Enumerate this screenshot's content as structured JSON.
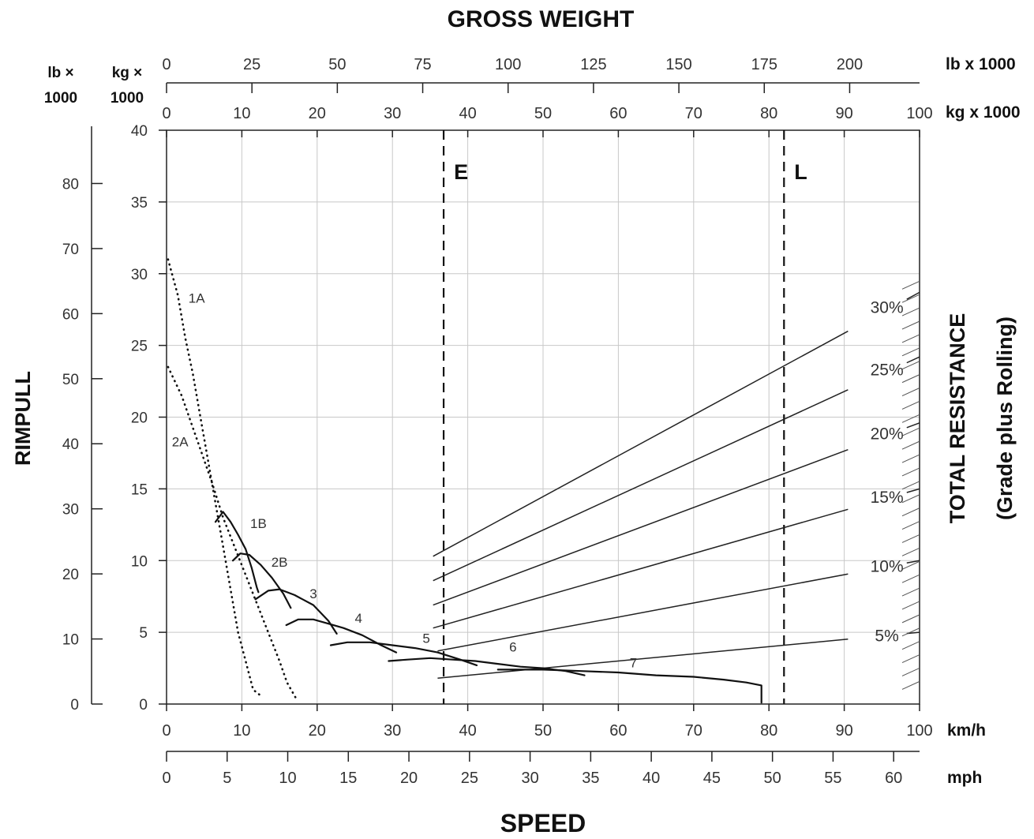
{
  "chart_data": {
    "type": "line",
    "title": "GROSS WEIGHT",
    "xlabel": "SPEED",
    "ylabel": "RIMPULL",
    "right_label_line1": "TOTAL RESISTANCE",
    "right_label_line2": "(Grade plus Rolling)",
    "x_axis_kmh": {
      "unit": "km/h",
      "range": [
        0,
        100
      ],
      "ticks": [
        0,
        10,
        20,
        30,
        40,
        50,
        60,
        70,
        80,
        90,
        100
      ]
    },
    "x_axis_mph": {
      "unit": "mph",
      "ticks": [
        0,
        5,
        10,
        15,
        20,
        25,
        30,
        35,
        40,
        45,
        50,
        55,
        60
      ]
    },
    "y_axis_kg": {
      "unit_line1": "kg ×",
      "unit_line2": "1000",
      "range": [
        0,
        40
      ],
      "ticks": [
        0,
        5,
        10,
        15,
        20,
        25,
        30,
        35,
        40
      ]
    },
    "y_axis_lb": {
      "unit_line1": "lb ×",
      "unit_line2": "1000",
      "ticks": [
        0,
        10,
        20,
        30,
        40,
        50,
        60,
        70,
        80
      ]
    },
    "top_axis_lb": {
      "unit": "lb x 1000",
      "ticks": [
        0,
        25,
        50,
        75,
        100,
        125,
        150,
        175,
        200
      ]
    },
    "top_axis_kg": {
      "unit": "kg x 1000",
      "range": [
        0,
        100
      ],
      "ticks": [
        0,
        10,
        20,
        30,
        40,
        50,
        60,
        70,
        80,
        90,
        100
      ]
    },
    "grid": true,
    "reference_lines": [
      {
        "label": "E",
        "x": 36.8
      },
      {
        "label": "L",
        "x": 82
      }
    ],
    "gear_curves": [
      {
        "name": "1A",
        "style": "dotted",
        "label_at": [
          4,
          28.3
        ],
        "points": [
          [
            0.2,
            31.0
          ],
          [
            1.5,
            28.5
          ],
          [
            2.5,
            25.5
          ],
          [
            3.5,
            23.0
          ],
          [
            4.5,
            20.0
          ],
          [
            5.5,
            17.0
          ],
          [
            6.5,
            14.0
          ],
          [
            7.5,
            11.0
          ],
          [
            8.5,
            8.0
          ],
          [
            9.5,
            5.0
          ],
          [
            10.5,
            3.0
          ],
          [
            11.5,
            1.0
          ],
          [
            12.7,
            0.5
          ]
        ]
      },
      {
        "name": "2A",
        "style": "dotted",
        "label_at": [
          1.8,
          18.3
        ],
        "points": [
          [
            0.2,
            23.5
          ],
          [
            2.0,
            21.5
          ],
          [
            4.0,
            18.5
          ],
          [
            6.0,
            15.5
          ],
          [
            7.5,
            13.0
          ],
          [
            9.0,
            11.0
          ],
          [
            10.5,
            9.0
          ],
          [
            12.0,
            7.0
          ],
          [
            13.5,
            5.0
          ],
          [
            15.0,
            3.0
          ],
          [
            16.0,
            1.5
          ],
          [
            17.3,
            0.3
          ]
        ]
      },
      {
        "name": "1B",
        "style": "solid",
        "label_at": [
          12.2,
          12.6
        ],
        "points": [
          [
            6.5,
            12.7
          ],
          [
            7.5,
            13.4
          ],
          [
            8.5,
            12.7
          ],
          [
            9.5,
            11.8
          ],
          [
            10.5,
            10.8
          ],
          [
            11.3,
            9.5
          ],
          [
            12.0,
            8.1
          ],
          [
            12.2,
            7.8
          ]
        ]
      },
      {
        "name": "2B",
        "style": "solid",
        "label_at": [
          15,
          9.9
        ],
        "points": [
          [
            8.8,
            10.0
          ],
          [
            9.8,
            10.5
          ],
          [
            11.0,
            10.4
          ],
          [
            12.5,
            9.7
          ],
          [
            14.0,
            8.8
          ],
          [
            15.5,
            7.7
          ],
          [
            16.5,
            6.7
          ]
        ]
      },
      {
        "name": "3",
        "style": "solid",
        "label_at": [
          19.5,
          7.7
        ],
        "points": [
          [
            11.8,
            7.3
          ],
          [
            13.5,
            7.9
          ],
          [
            15.0,
            8.0
          ],
          [
            17.0,
            7.6
          ],
          [
            19.5,
            6.9
          ],
          [
            21.5,
            5.8
          ],
          [
            22.6,
            4.9
          ]
        ]
      },
      {
        "name": "4",
        "style": "solid",
        "label_at": [
          25.5,
          6.0
        ],
        "points": [
          [
            15.9,
            5.5
          ],
          [
            17.5,
            5.9
          ],
          [
            19.5,
            5.9
          ],
          [
            21.5,
            5.6
          ],
          [
            23.5,
            5.3
          ],
          [
            26.0,
            4.8
          ],
          [
            28.5,
            4.1
          ],
          [
            30.5,
            3.6
          ]
        ]
      },
      {
        "name": "5",
        "style": "solid",
        "label_at": [
          34.5,
          4.6
        ],
        "points": [
          [
            21.8,
            4.1
          ],
          [
            24.0,
            4.3
          ],
          [
            27.0,
            4.3
          ],
          [
            30.0,
            4.1
          ],
          [
            33.0,
            3.9
          ],
          [
            36.0,
            3.6
          ],
          [
            39.0,
            3.1
          ],
          [
            41.2,
            2.7
          ]
        ]
      },
      {
        "name": "6",
        "style": "solid",
        "label_at": [
          46,
          4.0
        ],
        "points": [
          [
            29.5,
            3.0
          ],
          [
            32.0,
            3.1
          ],
          [
            35.0,
            3.2
          ],
          [
            38.0,
            3.1
          ],
          [
            41.0,
            3.0
          ],
          [
            44.0,
            2.8
          ],
          [
            47.0,
            2.6
          ],
          [
            50.0,
            2.5
          ],
          [
            53.0,
            2.3
          ],
          [
            55.5,
            2.0
          ]
        ]
      },
      {
        "name": "7",
        "style": "solid",
        "label_at": [
          62,
          2.9
        ],
        "points": [
          [
            44.0,
            2.4
          ],
          [
            47.0,
            2.4
          ],
          [
            50.0,
            2.4
          ],
          [
            55.0,
            2.3
          ],
          [
            60.0,
            2.2
          ],
          [
            65.0,
            2.0
          ],
          [
            70.0,
            1.9
          ],
          [
            74.0,
            1.7
          ],
          [
            77.0,
            1.5
          ],
          [
            79.0,
            1.3
          ],
          [
            79.0,
            0.1
          ]
        ]
      }
    ],
    "resistance_lines": [
      {
        "name": "30%",
        "x_start": 35.4,
        "y_start": 10.3,
        "x_end": 100,
        "y_end": 28.7
      },
      {
        "name": "25%",
        "x_start": 35.4,
        "y_start": 8.6,
        "x_end": 100,
        "y_end": 24.2
      },
      {
        "name": "20%",
        "x_start": 35.4,
        "y_start": 6.9,
        "x_end": 100,
        "y_end": 19.6
      },
      {
        "name": "15%",
        "x_start": 35.4,
        "y_start": 5.3,
        "x_end": 100,
        "y_end": 15.0
      },
      {
        "name": "10%",
        "x_start": 36.0,
        "y_start": 3.7,
        "x_end": 100,
        "y_end": 10.0
      },
      {
        "name": "5%",
        "x_start": 36.0,
        "y_start": 1.8,
        "x_end": 100,
        "y_end": 5.0
      }
    ]
  }
}
